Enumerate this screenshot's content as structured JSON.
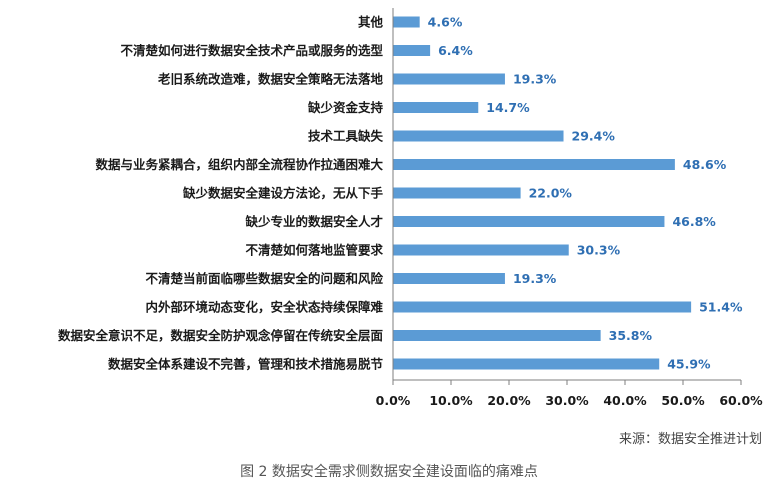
{
  "chart_data": {
    "type": "bar",
    "orientation": "horizontal",
    "categories": [
      "其他",
      "不清楚如何进行数据安全技术产品或服务的选型",
      "老旧系统改造难，数据安全策略无法落地",
      "缺少资金支持",
      "技术工具缺失",
      "数据与业务紧耦合，组织内部全流程协作拉通困难大",
      "缺少数据安全建设方法论，无从下手",
      "缺少专业的数据安全人才",
      "不清楚如何落地监管要求",
      "不清楚当前面临哪些数据安全的问题和风险",
      "内外部环境动态变化，安全状态持续保障难",
      "数据安全意识不足，数据安全防护观念停留在传统安全层面",
      "数据安全体系建设不完善，管理和技术措施易脱节"
    ],
    "values": [
      4.6,
      6.4,
      19.3,
      14.7,
      29.4,
      48.6,
      22.0,
      46.8,
      30.3,
      19.3,
      51.4,
      35.8,
      45.9
    ],
    "value_labels": [
      "4.6%",
      "6.4%",
      "19.3%",
      "14.7%",
      "29.4%",
      "48.6%",
      "22.0%",
      "46.8%",
      "30.3%",
      "19.3%",
      "51.4%",
      "35.8%",
      "45.9%"
    ],
    "xlim": [
      0,
      60
    ],
    "xticks": [
      "0.0%",
      "10.0%",
      "20.0%",
      "30.0%",
      "40.0%",
      "50.0%",
      "60.0%"
    ],
    "bar_color": "#5b9bd5",
    "value_label_color": "#2f6fb3",
    "grid": false,
    "legend": "none"
  },
  "source": "来源：数据安全推进计划",
  "caption": "图 2 数据安全需求侧数据安全建设面临的痛难点"
}
